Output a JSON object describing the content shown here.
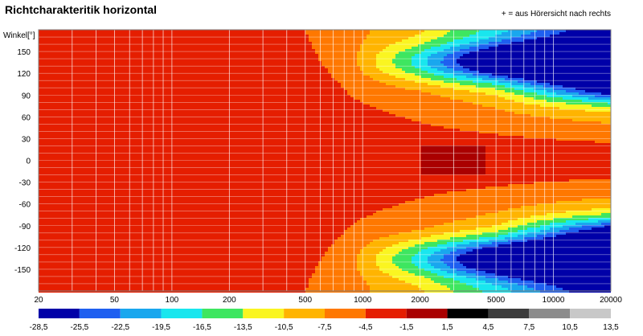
{
  "chart_data": {
    "type": "heatmap",
    "title": "Richtcharakteritik horizontal",
    "annotation": "+ = aus Hörersicht nach rechts",
    "ylabel": "Winkel[°]",
    "xlabel": "",
    "x_scale": "log",
    "xlim": [
      20,
      20000
    ],
    "ylim": [
      -180,
      180
    ],
    "x_ticks": [
      "20",
      "50",
      "100",
      "200",
      "500",
      "1000",
      "2000",
      "5000",
      "10000",
      "20000"
    ],
    "y_ticks": [
      "150",
      "120",
      "90",
      "60",
      "30",
      "0",
      "-30",
      "-60",
      "-90",
      "-120",
      "-150"
    ],
    "colorbar": {
      "labels": [
        "-28,5",
        "-25,5",
        "-22,5",
        "-19,5",
        "-16,5",
        "-13,5",
        "-10,5",
        "-7,5",
        "-4,5",
        "-1,5",
        "1,5",
        "4,5",
        "7,5",
        "10,5",
        "13,5"
      ],
      "colors": [
        "#0000a8",
        "#1e5ff0",
        "#19a7ee",
        "#19e6ee",
        "#3ee660",
        "#faf521",
        "#ffb400",
        "#ff7800",
        "#e51e00",
        "#aa0000",
        "#000000",
        "#3c3c3c",
        "#8c8c8c",
        "#c8c8c8"
      ]
    },
    "grid": true,
    "legend": "bottom colorbar"
  }
}
